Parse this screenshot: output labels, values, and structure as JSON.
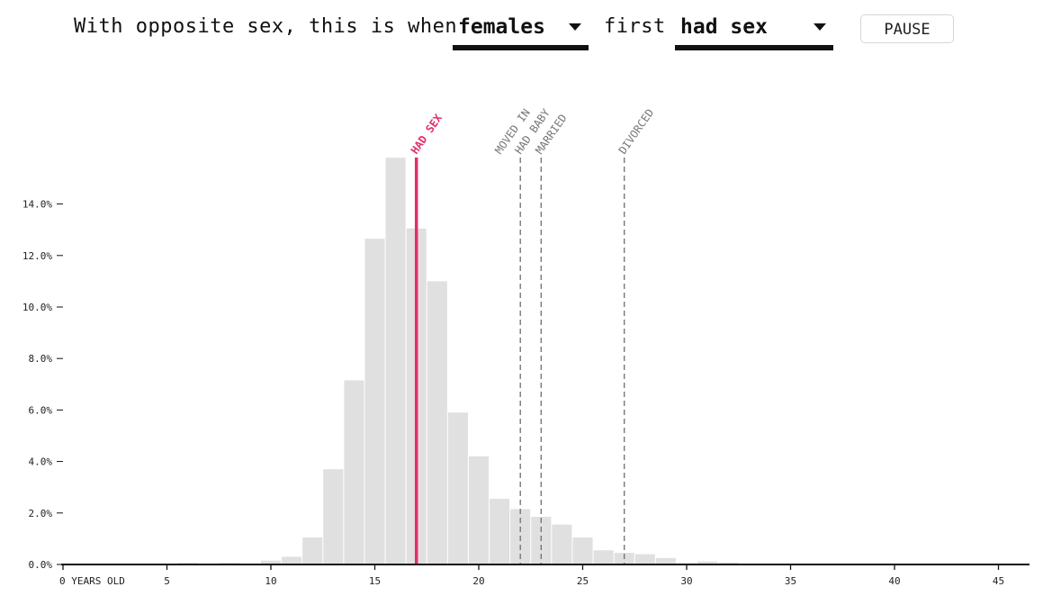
{
  "header": {
    "prefix_text": "With opposite sex, this is when",
    "who_select": {
      "value": "females"
    },
    "middle_text": "first",
    "event_select": {
      "value": "had sex"
    },
    "pause_label": "PAUSE"
  },
  "colors": {
    "bar": "#e0e0e0",
    "highlight": "#e0306c",
    "event_line": "#6f6f6f",
    "axis": "#111111"
  },
  "chart_data": {
    "type": "bar",
    "x_unit": "years old",
    "xlim": [
      0,
      46
    ],
    "ylim": [
      0,
      15.8
    ],
    "x_ticks": [
      {
        "value": 0,
        "label": "0 YEARS OLD"
      },
      {
        "value": 5,
        "label": "5"
      },
      {
        "value": 10,
        "label": "10"
      },
      {
        "value": 15,
        "label": "15"
      },
      {
        "value": 20,
        "label": "20"
      },
      {
        "value": 25,
        "label": "25"
      },
      {
        "value": 30,
        "label": "30"
      },
      {
        "value": 35,
        "label": "35"
      },
      {
        "value": 40,
        "label": "40"
      },
      {
        "value": 45,
        "label": "45"
      }
    ],
    "y_ticks": [
      {
        "value": 0,
        "label": "0.0%"
      },
      {
        "value": 2,
        "label": "2.0%"
      },
      {
        "value": 4,
        "label": "4.0%"
      },
      {
        "value": 6,
        "label": "6.0%"
      },
      {
        "value": 8,
        "label": "8.0%"
      },
      {
        "value": 10,
        "label": "10.0%"
      },
      {
        "value": 12,
        "label": "12.0%"
      },
      {
        "value": 14,
        "label": "14.0%"
      }
    ],
    "bars": [
      {
        "age": 5,
        "value": 0.03
      },
      {
        "age": 6,
        "value": 0.06
      },
      {
        "age": 7,
        "value": 0.03
      },
      {
        "age": 8,
        "value": 0.06
      },
      {
        "age": 9,
        "value": 0.03
      },
      {
        "age": 10,
        "value": 0.15
      },
      {
        "age": 11,
        "value": 0.3
      },
      {
        "age": 12,
        "value": 1.05
      },
      {
        "age": 13,
        "value": 3.7
      },
      {
        "age": 14,
        "value": 7.15
      },
      {
        "age": 15,
        "value": 12.65
      },
      {
        "age": 16,
        "value": 15.8
      },
      {
        "age": 17,
        "value": 13.05
      },
      {
        "age": 18,
        "value": 11.0
      },
      {
        "age": 19,
        "value": 5.9
      },
      {
        "age": 20,
        "value": 4.2
      },
      {
        "age": 21,
        "value": 2.55
      },
      {
        "age": 22,
        "value": 2.15
      },
      {
        "age": 23,
        "value": 1.85
      },
      {
        "age": 24,
        "value": 1.55
      },
      {
        "age": 25,
        "value": 1.05
      },
      {
        "age": 26,
        "value": 0.55
      },
      {
        "age": 27,
        "value": 0.45
      },
      {
        "age": 28,
        "value": 0.4
      },
      {
        "age": 29,
        "value": 0.25
      },
      {
        "age": 30,
        "value": 0.05
      },
      {
        "age": 31,
        "value": 0.12
      },
      {
        "age": 32,
        "value": 0.08
      },
      {
        "age": 33,
        "value": 0.03
      },
      {
        "age": 34,
        "value": 0.03
      }
    ],
    "events": [
      {
        "label": "HAD SEX",
        "age": 17,
        "active": true
      },
      {
        "label": "HAD BABY",
        "age": 22,
        "active": false
      },
      {
        "label": "MOVED IN",
        "age": 22,
        "active": false
      },
      {
        "label": "MARRIED",
        "age": 23,
        "active": false
      },
      {
        "label": "DIVORCED",
        "age": 27,
        "active": false
      }
    ]
  }
}
